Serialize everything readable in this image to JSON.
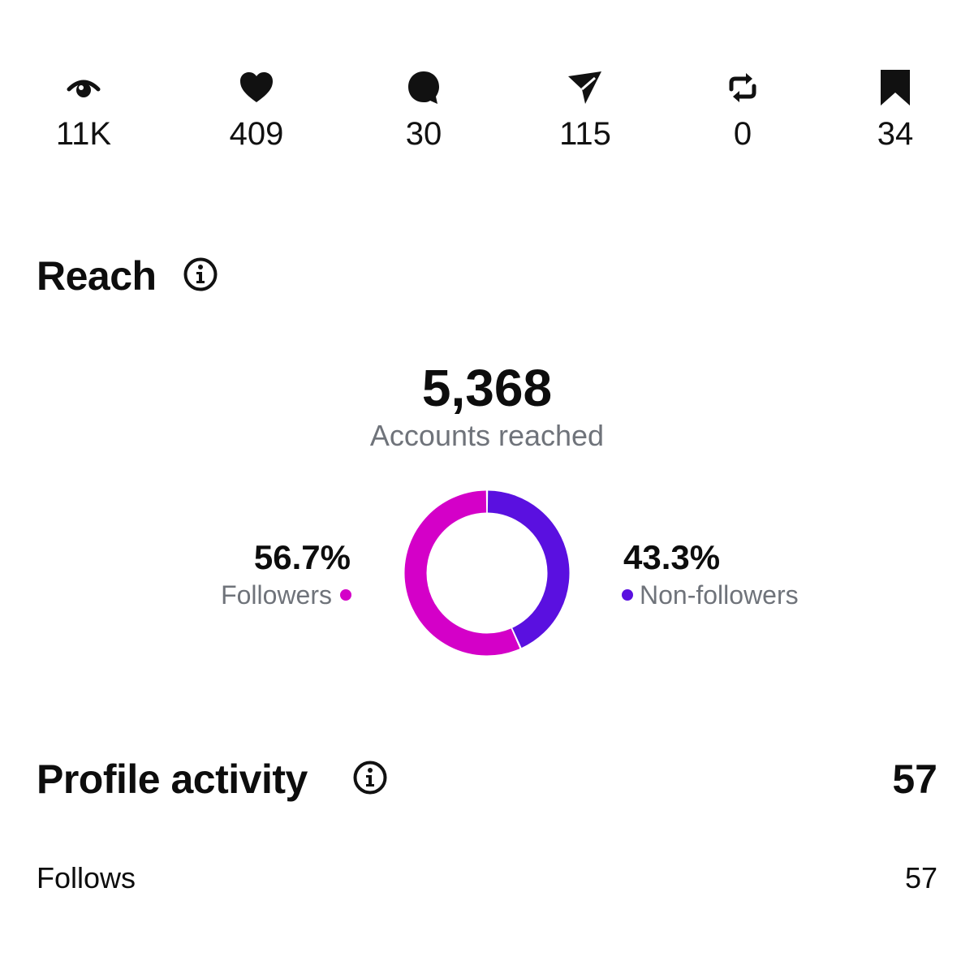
{
  "metrics": [
    {
      "icon": "eye-icon",
      "value": "11K"
    },
    {
      "icon": "heart-icon",
      "value": "409"
    },
    {
      "icon": "comment-icon",
      "value": "30"
    },
    {
      "icon": "send-icon",
      "value": "115"
    },
    {
      "icon": "repost-icon",
      "value": "0"
    },
    {
      "icon": "bookmark-icon",
      "value": "34"
    }
  ],
  "reach": {
    "title": "Reach",
    "total": "5,368",
    "total_label": "Accounts reached",
    "followers": {
      "pct": "56.7%",
      "label": "Followers",
      "fraction": 0.567,
      "color": "#d400c8"
    },
    "non_followers": {
      "pct": "43.3%",
      "label": "Non-followers",
      "fraction": 0.433,
      "color": "#5a10e0"
    }
  },
  "profile_activity": {
    "title": "Profile activity",
    "total": "57",
    "rows": [
      {
        "label": "Follows",
        "value": "57"
      }
    ]
  }
}
